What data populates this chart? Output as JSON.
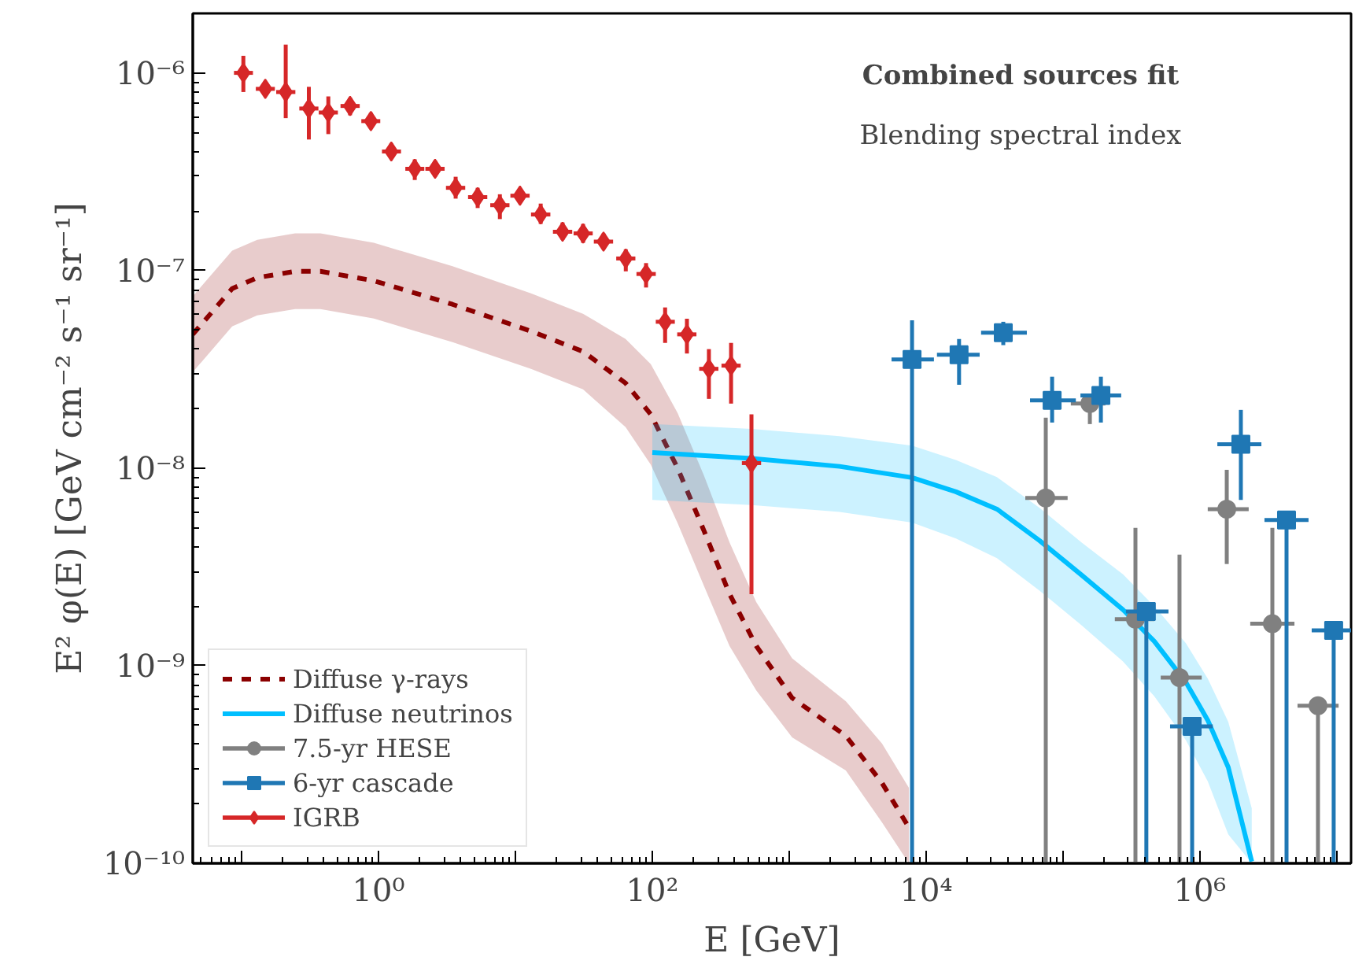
{
  "chart_data": {
    "type": "scatter",
    "xlabel": "E [GeV]",
    "ylabel": "E² φ(E) [GeV cm⁻² s⁻¹ sr⁻¹]",
    "log": "xy",
    "xlim": [
      0.044,
      12700000
    ],
    "ylim": [
      1e-10,
      2e-06
    ],
    "xticks": [
      {
        "value": 0.1,
        "label": null
      },
      {
        "value": 1,
        "label": "10⁰"
      },
      {
        "value": 10,
        "label": null
      },
      {
        "value": 100,
        "label": "10²"
      },
      {
        "value": 1000,
        "label": null
      },
      {
        "value": 10000,
        "label": "10⁴"
      },
      {
        "value": 100000,
        "label": null
      },
      {
        "value": 1000000,
        "label": "10⁶"
      },
      {
        "value": 10000000,
        "label": null
      }
    ],
    "yticks": [
      {
        "value": 1e-10,
        "label": "10⁻¹⁰"
      },
      {
        "value": 1e-09,
        "label": "10⁻⁹"
      },
      {
        "value": 1e-08,
        "label": "10⁻⁸"
      },
      {
        "value": 1e-07,
        "label": "10⁻⁷"
      },
      {
        "value": 1e-06,
        "label": "10⁻⁶"
      }
    ],
    "legend": "bottom left",
    "annotations": [
      "Combined sources fit",
      "Blending spectral index"
    ],
    "series": [
      {
        "name": "Diffuse γ-rays",
        "type": "line",
        "line_style": "dashed",
        "color": "#8b0000",
        "x": [
          0.044,
          0.0853,
          0.13,
          0.246,
          0.376,
          0.925,
          3.47,
          13.0,
          31.2,
          63.8,
          97.5,
          153,
          239,
          366,
          574,
          1050,
          2590,
          4760,
          7480
        ],
        "values": [
          4.75e-08,
          8.09e-08,
          9.2e-08,
          9.9e-08,
          9.9e-08,
          8.87e-08,
          6.74e-08,
          4.93e-08,
          3.89e-08,
          2.69e-08,
          1.87e-08,
          1e-08,
          4.8e-09,
          2.31e-09,
          1.26e-09,
          6.87e-10,
          4.42e-10,
          2.55e-10,
          1.52e-10
        ],
        "lower": [
          3.06e-08,
          5.21e-08,
          5.93e-08,
          6.38e-08,
          6.38e-08,
          5.71e-08,
          4.34e-08,
          3.18e-08,
          2.5e-08,
          1.61e-08,
          1.04e-08,
          5.26e-09,
          2.52e-09,
          1.26e-09,
          7.5e-10,
          4.34e-10,
          2.95e-10,
          1.61e-10,
          1e-10
        ],
        "upper": [
          7.4e-08,
          1.26e-07,
          1.43e-07,
          1.54e-07,
          1.54e-07,
          1.38e-07,
          1.05e-07,
          7.66e-08,
          6.04e-08,
          4.5e-08,
          3.36e-08,
          1.9e-08,
          9.12e-09,
          4.22e-09,
          2.1e-09,
          1.09e-09,
          6.62e-10,
          4.04e-10,
          2.41e-10
        ]
      },
      {
        "name": "Diffuse neutrinos",
        "type": "line",
        "line_style": "solid",
        "color": "#00bfff",
        "x": [
          100,
          530,
          2330,
          7890,
          16500,
          32900,
          67300,
          137000,
          274000,
          464000,
          789000,
          1140000,
          1610000,
          2390000
        ],
        "values": [
          1.2e-08,
          1.12e-08,
          1.02e-08,
          8.95e-09,
          7.59e-09,
          6.2e-09,
          4.3e-09,
          2.87e-09,
          1.92e-09,
          1.33e-09,
          8.25e-10,
          5.3e-10,
          3.06e-10,
          1.02e-10
        ],
        "lower": [
          6.9e-09,
          6.5e-09,
          6e-09,
          5.3e-09,
          4.4e-09,
          3.5e-09,
          2.4e-09,
          1.6e-09,
          1.05e-09,
          7e-10,
          4.2e-10,
          2.6e-10,
          1.4e-10,
          1e-10
        ],
        "upper": [
          1.67e-08,
          1.58e-08,
          1.45e-08,
          1.3e-08,
          1.1e-08,
          9e-09,
          6.3e-09,
          4.2e-09,
          2.9e-09,
          2e-09,
          1.3e-09,
          8.6e-10,
          5.2e-10,
          1.9e-10
        ]
      },
      {
        "name": "7.5-yr HESE",
        "marker": "circle",
        "color": "#808080",
        "x": [
          74800,
          157000,
          338000,
          709000,
          1570000,
          3380000,
          7280000
        ],
        "values": [
          7.06e-09,
          2.12e-08,
          1.72e-09,
          8.7e-10,
          6.2e-09,
          1.63e-09,
          6.27e-10
        ],
        "errors": [
          [
            1e-10,
            1.8e-08
          ],
          [
            1.67e-08,
            2.37e-08
          ],
          [
            1e-10,
            4.98e-09
          ],
          [
            1e-10,
            3.65e-09
          ],
          [
            3.27e-09,
            9.8e-09
          ],
          [
            1e-10,
            4.98e-09
          ],
          [
            1e-10,
            6.27e-10
          ]
        ],
        "xerrors": [
          [
            53000,
            108000
          ],
          [
            114000,
            204000
          ],
          [
            239000,
            464000
          ],
          [
            517000,
            1030000
          ],
          [
            1140000,
            2270000
          ],
          [
            2330000,
            4900000
          ],
          [
            5160000,
            10300000
          ]
        ]
      },
      {
        "name": "6-yr cascade",
        "marker": "square",
        "color": "#1f77b4",
        "x": [
          7890,
          17400,
          36600,
          83200,
          189000,
          406000,
          877000,
          1990000,
          4290000,
          9480000
        ],
        "values": [
          3.55e-08,
          3.75e-08,
          4.84e-08,
          2.2e-08,
          2.33e-08,
          1.88e-09,
          4.93e-10,
          1.32e-08,
          5.46e-09,
          1.51e-09
        ],
        "errors": [
          [
            1e-10,
            5.6e-08
          ],
          [
            2.64e-08,
            4.5e-08
          ],
          [
            4.19e-08,
            5.5e-08
          ],
          [
            1.7e-08,
            2.9e-08
          ],
          [
            1.7e-08,
            2.9e-08
          ],
          [
            1e-10,
            1.88e-09
          ],
          [
            1e-10,
            4.93e-10
          ],
          [
            6.9e-09,
            1.97e-08
          ],
          [
            1e-10,
            5.46e-09
          ],
          [
            1e-10,
            1.51e-09
          ]
        ],
        "xerrors": [
          [
            5590,
            11400
          ],
          [
            12000,
            24600
          ],
          [
            25200,
            54400
          ],
          [
            57400,
            124000
          ],
          [
            134000,
            266000
          ],
          [
            288000,
            589000
          ],
          [
            605000,
            1240000
          ],
          [
            1340000,
            2810000
          ],
          [
            2960000,
            6210000
          ],
          [
            6550000,
            12700000
          ]
        ]
      },
      {
        "name": "IGRB",
        "marker": "diamond",
        "color": "#d62728",
        "x": [
          0.103,
          0.149,
          0.21,
          0.31,
          0.43,
          0.62,
          0.88,
          1.24,
          1.84,
          2.59,
          3.66,
          5.3,
          7.7,
          10.8,
          15.3,
          22.1,
          31.2,
          44,
          64,
          90,
          124,
          179,
          259,
          376,
          530
        ],
        "values": [
          1e-06,
          8.3e-07,
          8e-07,
          6.6e-07,
          6.3e-07,
          6.8e-07,
          5.7e-07,
          4e-07,
          3.27e-07,
          3.27e-07,
          2.62e-07,
          2.35e-07,
          2.14e-07,
          2.39e-07,
          1.92e-07,
          1.57e-07,
          1.54e-07,
          1.4e-07,
          1.15e-07,
          9.6e-08,
          5.5e-08,
          4.75e-08,
          3.18e-08,
          3.3e-08,
          1.06e-08
        ],
        "errors": [
          [
            8e-07,
            1.22e-06
          ],
          null,
          [
            5.9e-07,
            1.39e-06
          ],
          [
            4.6e-07,
            8.5e-07
          ],
          [
            4.9e-07,
            7.6e-07
          ],
          [
            6.1e-07,
            7.5e-07
          ],
          [
            5.2e-07,
            6.3e-07
          ],
          [
            3.7e-07,
            4.4e-07
          ],
          [
            2.87e-07,
            3.65e-07
          ],
          [
            2.98e-07,
            3.6e-07
          ],
          [
            2.31e-07,
            2.98e-07
          ],
          [
            2.07e-07,
            2.62e-07
          ],
          [
            1.82e-07,
            2.43e-07
          ],
          null,
          [
            1.72e-07,
            2.18e-07
          ],
          [
            1.43e-07,
            1.75e-07
          ],
          [
            1.38e-07,
            1.72e-07
          ],
          [
            1.28e-07,
            1.54e-07
          ],
          [
            9.9e-08,
            1.28e-07
          ],
          [
            8.2e-08,
            1.09e-07
          ],
          [
            4.3e-08,
            6.5e-08
          ],
          [
            3.8e-08,
            5.7e-08
          ],
          [
            2.24e-08,
            4e-08
          ],
          [
            2.12e-08,
            4.3e-08
          ],
          [
            2.3e-09,
            1.87e-08
          ]
        ],
        "xerrors": [
          [
            0.088,
            0.121
          ],
          [
            0.127,
            0.175
          ],
          [
            0.179,
            0.247
          ],
          [
            0.264,
            0.364
          ],
          [
            0.366,
            0.505
          ],
          [
            0.528,
            0.729
          ],
          [
            0.749,
            1.03
          ],
          [
            1.06,
            1.46
          ],
          [
            1.57,
            2.16
          ],
          [
            2.2,
            3.04
          ],
          [
            3.11,
            4.3
          ],
          [
            4.51,
            6.23
          ],
          [
            6.55,
            9.05
          ],
          [
            9.19,
            12.7
          ],
          [
            13.0,
            18.0
          ],
          [
            18.8,
            26.0
          ],
          [
            26.6,
            36.7
          ],
          [
            37.4,
            51.7
          ],
          [
            54.5,
            75.2
          ],
          [
            76.6,
            106
          ],
          [
            106,
            146
          ],
          [
            152,
            210
          ],
          [
            220,
            304
          ],
          [
            320,
            442
          ],
          [
            451,
            623
          ]
        ]
      }
    ]
  }
}
